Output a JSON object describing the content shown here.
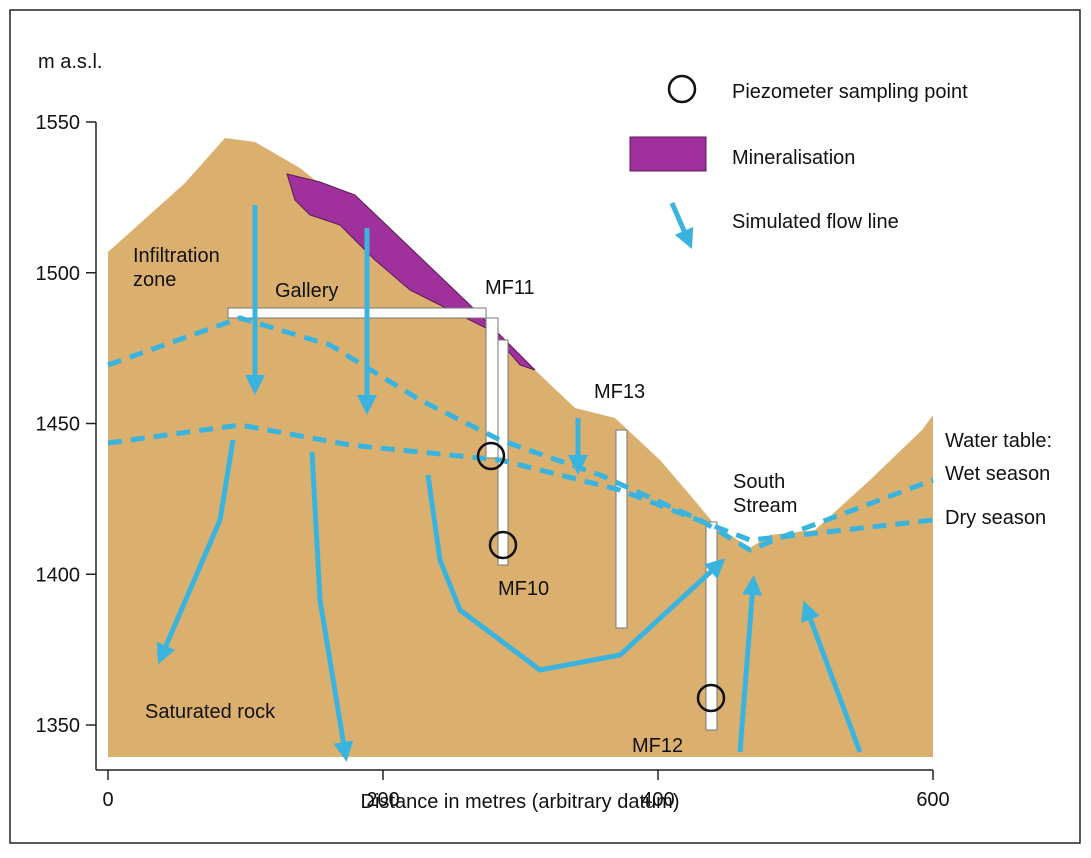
{
  "y_unit": "m a.s.l.",
  "x_axis_label": "Distance in metres (arbitrary datum)",
  "xticks": [
    0,
    200,
    400,
    600
  ],
  "yticks": [
    1350,
    1400,
    1450,
    1500,
    1550
  ],
  "legend": {
    "piezometer": "Piezometer sampling point",
    "mineralisation": "Mineralisation",
    "flow": "Simulated flow line"
  },
  "labels": {
    "infiltration": "Infiltration\nzone",
    "gallery": "Gallery",
    "mf11": "MF11",
    "mf13": "MF13",
    "mf10": "MF10",
    "mf12": "MF12",
    "stream": "South\nStream",
    "water_table": "Water table:",
    "wet": "Wet season",
    "dry": "Dry season",
    "saturated": "Saturated rock"
  }
}
